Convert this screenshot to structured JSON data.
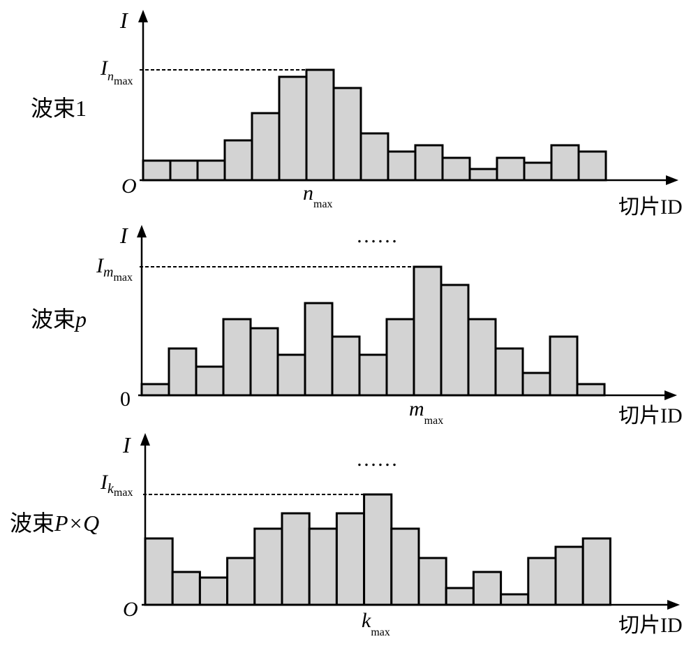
{
  "chart_data": [
    {
      "type": "bar",
      "beam_label": {
        "prefix": "波束",
        "suffix": "1"
      },
      "ylabel": "I",
      "xlabel": "切片ID",
      "origin_label": "O",
      "origin_italic": true,
      "max_label": {
        "base": "I",
        "sub": "n",
        "subsub": "max"
      },
      "argmax_label": {
        "base": "n",
        "sub": "max"
      },
      "ellipsis": "",
      "ylim": [
        0,
        160
      ],
      "values": [
        28,
        28,
        28,
        57,
        96,
        148,
        158,
        132,
        67,
        41,
        50,
        32,
        16,
        32,
        25,
        50,
        41
      ],
      "peak_index": 6
    },
    {
      "type": "bar",
      "beam_label": {
        "prefix": "波束",
        "suffix": "p"
      },
      "ylabel": "I",
      "xlabel": "切片ID",
      "origin_label": "0",
      "origin_italic": false,
      "max_label": {
        "base": "I",
        "sub": "m",
        "subsub": "max"
      },
      "argmax_label": {
        "base": "m",
        "sub": "max"
      },
      "ellipsis": "……",
      "ylim": [
        0,
        190
      ],
      "values": [
        16,
        67,
        41,
        109,
        96,
        58,
        132,
        84,
        58,
        109,
        184,
        158,
        109,
        67,
        32,
        84,
        16
      ],
      "peak_index": 10
    },
    {
      "type": "bar",
      "beam_label": {
        "prefix": "波束",
        "suffix": "P×Q"
      },
      "ylabel": "I",
      "xlabel": "切片ID",
      "origin_label": "O",
      "origin_italic": true,
      "max_label": {
        "base": "I",
        "sub": "k",
        "subsub": "max"
      },
      "argmax_label": {
        "base": "k",
        "sub": "max"
      },
      "ellipsis": "……",
      "ylim": [
        0,
        160
      ],
      "values": [
        95,
        47,
        39,
        67,
        109,
        131,
        109,
        131,
        158,
        109,
        67,
        24,
        47,
        15,
        67,
        83,
        95
      ],
      "peak_index": 8
    }
  ]
}
